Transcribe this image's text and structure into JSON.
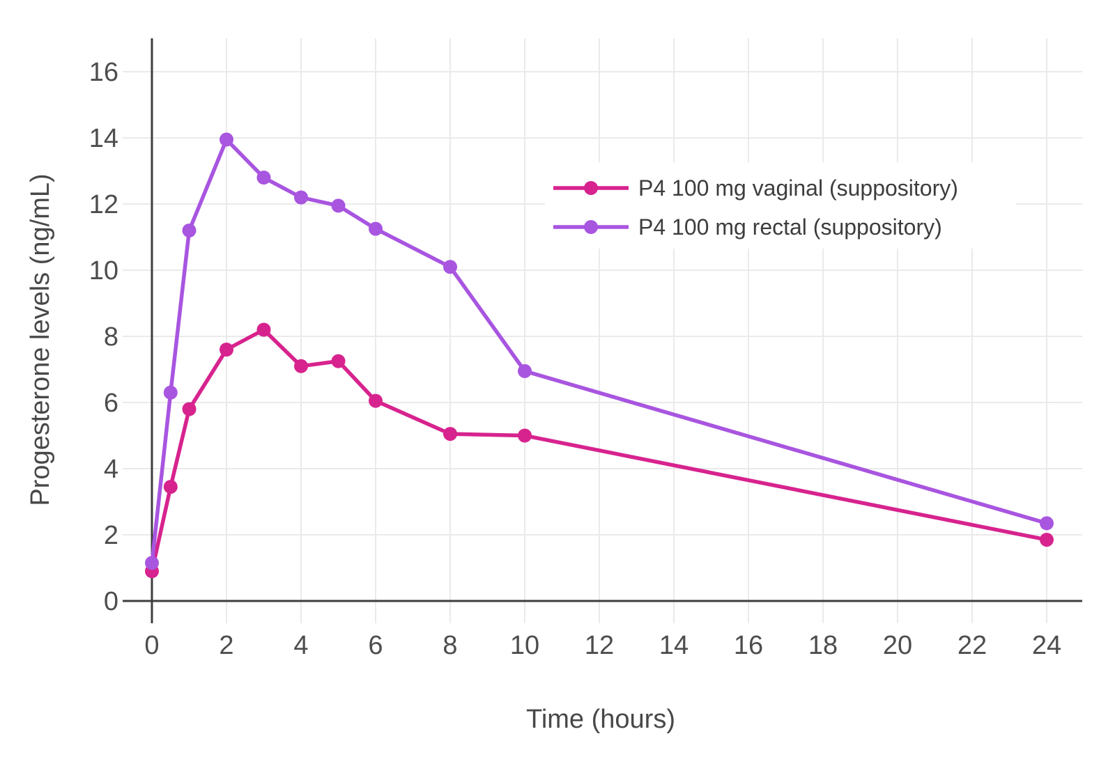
{
  "chart_data": {
    "type": "line",
    "title": "",
    "xlabel": "Time (hours)",
    "ylabel": "Progesterone levels (ng/mL)",
    "x": [
      0,
      0.5,
      1,
      2,
      3,
      4,
      5,
      6,
      8,
      10,
      24
    ],
    "series": [
      {
        "id": "vaginal",
        "name": "P4 100 mg vaginal (suppository)",
        "color": "#D7238E",
        "values": [
          0.9,
          3.45,
          5.8,
          7.6,
          8.2,
          7.1,
          7.25,
          6.05,
          5.05,
          5.0,
          1.85
        ]
      },
      {
        "id": "rectal",
        "name": "P4 100 mg rectal (suppository)",
        "color": "#A855E0",
        "values": [
          1.15,
          6.3,
          11.2,
          13.95,
          12.8,
          12.2,
          11.95,
          11.25,
          10.1,
          6.95,
          2.35
        ]
      }
    ],
    "x_ticks": [
      0,
      2,
      4,
      6,
      8,
      10,
      12,
      14,
      16,
      18,
      20,
      22,
      24
    ],
    "y_ticks": [
      0,
      2,
      4,
      6,
      8,
      10,
      12,
      14,
      16
    ],
    "xlim": [
      0,
      25
    ],
    "ylim": [
      0,
      17
    ],
    "grid": true,
    "legend_position": "top-right",
    "style": {
      "background": "#FFFFFF",
      "grid_color": "#EAEAEA",
      "axis_color": "#3E3E3E",
      "tick_label_color": "#4D4D4D",
      "axis_title_color": "#484848",
      "legend_text_color": "#3D3D3D",
      "marker_radius": 10,
      "line_width": 5.5
    }
  }
}
